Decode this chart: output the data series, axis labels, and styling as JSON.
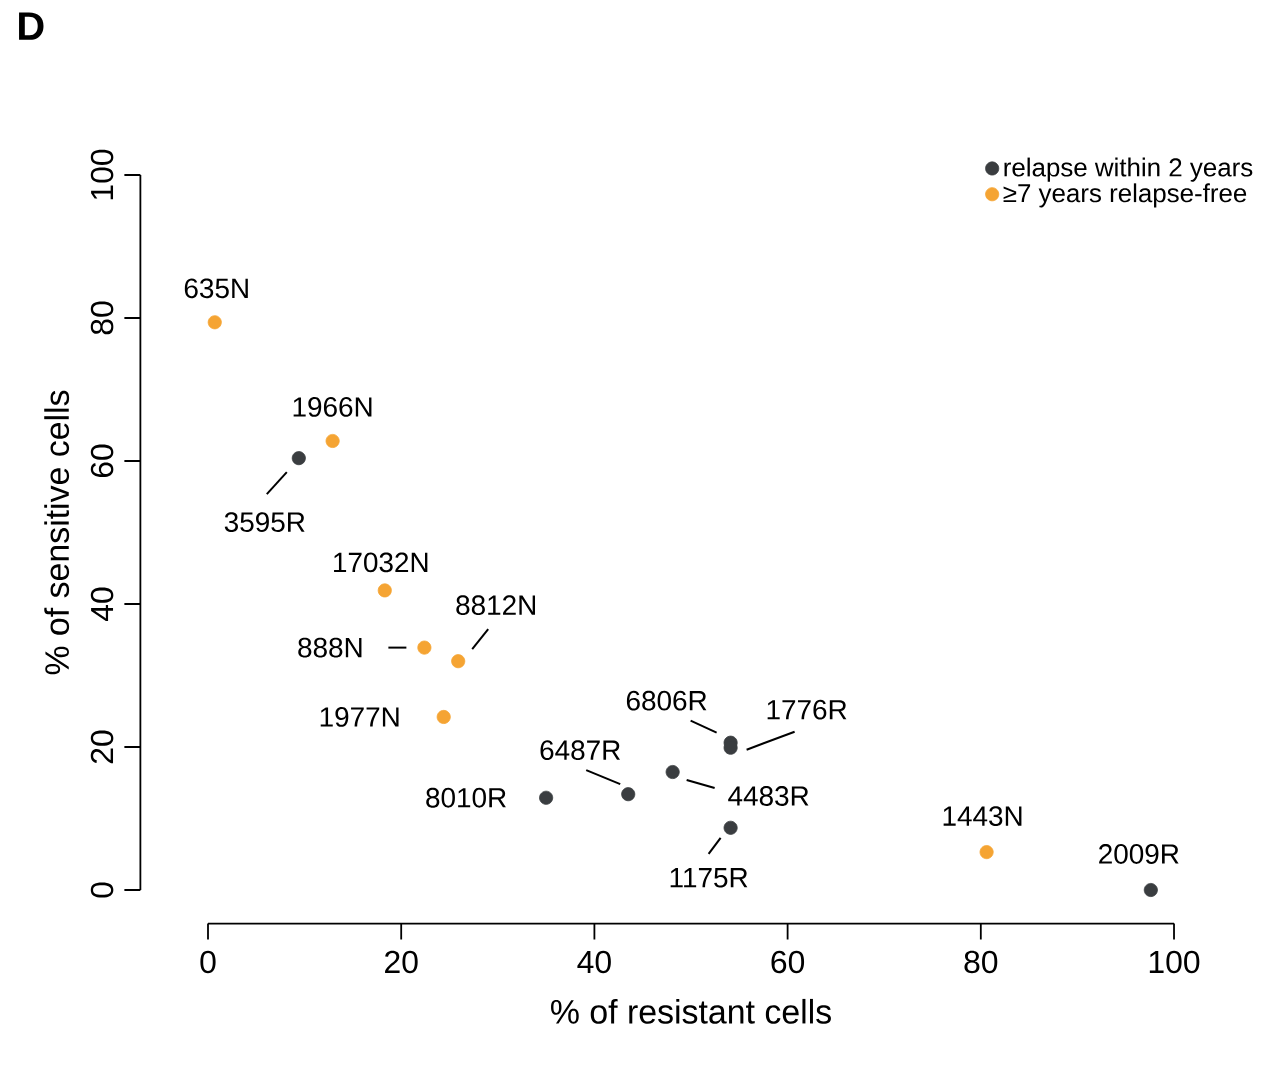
{
  "chart_data": {
    "type": "scatter",
    "title": "D",
    "xlabel": "% of resistant cells",
    "ylabel": "% of sensitive cells",
    "xlim": [
      0,
      100
    ],
    "ylim": [
      0,
      100
    ],
    "xticks": [
      0,
      20,
      40,
      60,
      80,
      100
    ],
    "yticks": [
      0,
      20,
      40,
      60,
      80,
      100
    ],
    "marker": "circle",
    "legend": "top right",
    "series": [
      {
        "name": "relapse within 2 years",
        "color": "#3a3d40",
        "x": [
          9.4,
          35.0,
          43.5,
          48.1,
          54.1,
          54.1,
          54.1,
          97.6
        ],
        "values": [
          60.4,
          12.9,
          13.4,
          16.5,
          20.6,
          19.9,
          8.7,
          0
        ]
      },
      {
        "name": "≥7 years relapse-free",
        "color": "#f5a433",
        "x": [
          0.7,
          12.9,
          18.3,
          22.4,
          25.9,
          24.4,
          80.6
        ],
        "values": [
          79.4,
          62.8,
          41.9,
          33.9,
          32.0,
          24.2,
          5.3
        ]
      }
    ],
    "annotations": [
      {
        "text": "635N",
        "x": 0.7,
        "y": 79.4
      },
      {
        "text": "1966N",
        "x": 12.9,
        "y": 62.8
      },
      {
        "text": "3595R",
        "x": 9.4,
        "y": 60.4
      },
      {
        "text": "17032N",
        "x": 18.3,
        "y": 41.9
      },
      {
        "text": "888N",
        "x": 22.4,
        "y": 33.9
      },
      {
        "text": "8812N",
        "x": 25.9,
        "y": 32.0
      },
      {
        "text": "1977N",
        "x": 24.4,
        "y": 24.2
      },
      {
        "text": "6806R",
        "x": 54.1,
        "y": 20.6
      },
      {
        "text": "1776R",
        "x": 54.1,
        "y": 19.9
      },
      {
        "text": "6487R",
        "x": 43.5,
        "y": 13.4
      },
      {
        "text": "8010R",
        "x": 35.0,
        "y": 12.9
      },
      {
        "text": "4483R",
        "x": 48.1,
        "y": 16.5
      },
      {
        "text": "1175R",
        "x": 54.1,
        "y": 8.7
      },
      {
        "text": "1443N",
        "x": 80.6,
        "y": 5.3
      },
      {
        "text": "2009R",
        "x": 97.6,
        "y": 0
      }
    ]
  }
}
